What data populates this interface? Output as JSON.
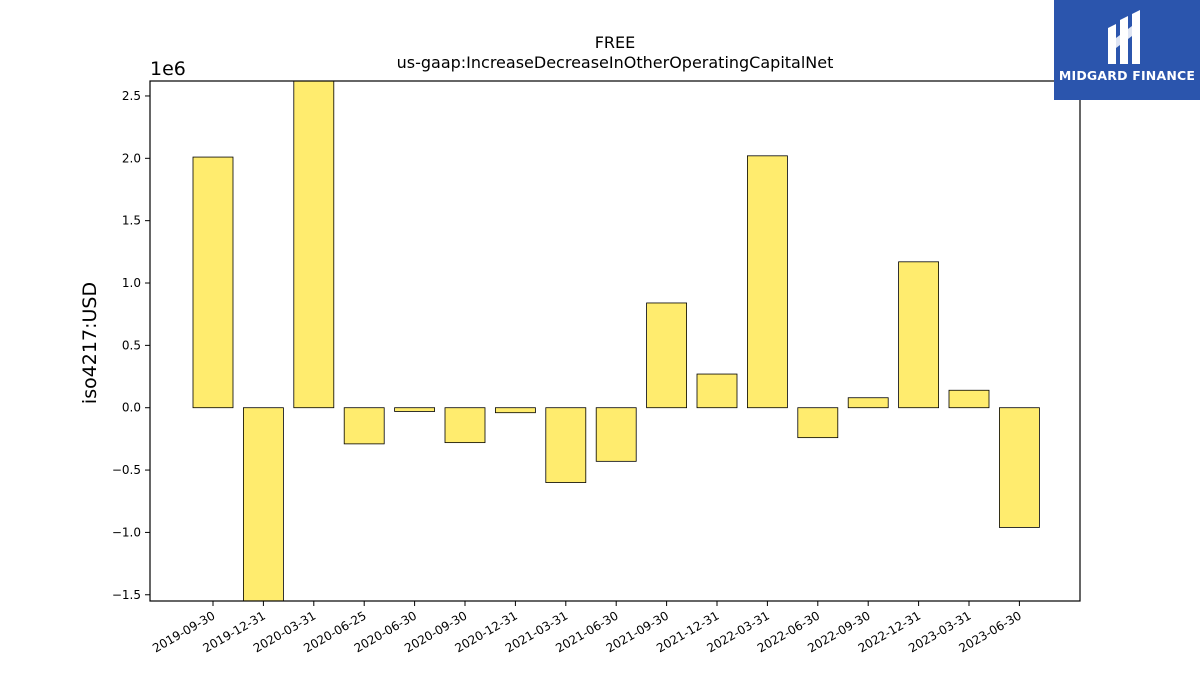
{
  "logo": {
    "text": "MIDGARD FINANCE",
    "icon": "midgard-m-icon",
    "background": "#2b55ad"
  },
  "chart_data": {
    "type": "bar",
    "title": "FREE",
    "subtitle": "us-gaap:IncreaseDecreaseInOtherOperatingCapitalNet",
    "ylabel": "iso4217:USD",
    "xlabel": "",
    "y_multiplier_label": "1e6",
    "ylim": [
      -1.55,
      2.62
    ],
    "yticks": [
      -1.5,
      -1.0,
      -0.5,
      0.0,
      0.5,
      1.0,
      1.5,
      2.0,
      2.5
    ],
    "ytick_labels": [
      "−1.5",
      "−1.0",
      "−0.5",
      "0.0",
      "0.5",
      "1.0",
      "1.5",
      "2.0",
      "2.5"
    ],
    "grid": false,
    "bar_color": "#ffec6e",
    "bar_edge_color": "#000000",
    "categories": [
      "2019-09-30",
      "2019-12-31",
      "2020-03-31",
      "2020-06-25",
      "2020-06-30",
      "2020-09-30",
      "2020-12-31",
      "2021-03-31",
      "2021-06-30",
      "2021-09-30",
      "2021-12-31",
      "2022-03-31",
      "2022-06-30",
      "2022-09-30",
      "2022-12-31",
      "2023-03-31",
      "2023-06-30"
    ],
    "values": [
      2.01,
      -1.72,
      2.75,
      -0.29,
      -0.03,
      -0.28,
      -0.04,
      -0.6,
      -0.43,
      0.84,
      0.27,
      2.02,
      -0.24,
      0.08,
      1.17,
      0.14,
      -0.96
    ]
  }
}
